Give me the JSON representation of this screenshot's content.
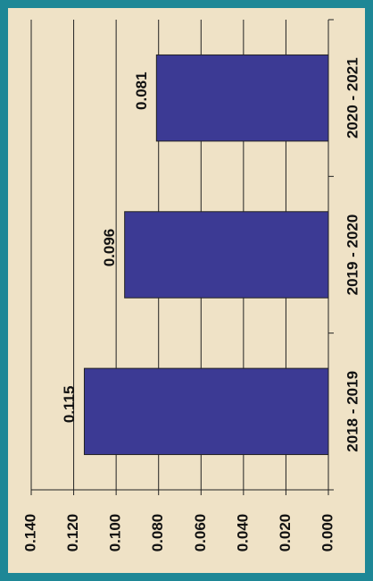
{
  "chart_data": {
    "type": "bar",
    "orientation": "horizontal",
    "categories": [
      "2018 - 2019",
      "2019 - 2020",
      "2020 - 2021"
    ],
    "values": [
      0.115,
      0.096,
      0.081
    ],
    "color": "#3c3a94",
    "ylim": [
      0,
      0.14
    ],
    "yticks": [
      {
        "value": 0,
        "label": "0.000"
      },
      {
        "value": 0.02,
        "label": "0.020"
      },
      {
        "value": 0.04,
        "label": "0.040"
      },
      {
        "value": 0.06,
        "label": "0.060"
      },
      {
        "value": 0.08,
        "label": "0.080"
      },
      {
        "value": 0.1,
        "label": "0.100"
      },
      {
        "value": 0.12,
        "label": "0.120"
      },
      {
        "value": 0.14,
        "label": "0.140"
      }
    ],
    "grid": true
  }
}
